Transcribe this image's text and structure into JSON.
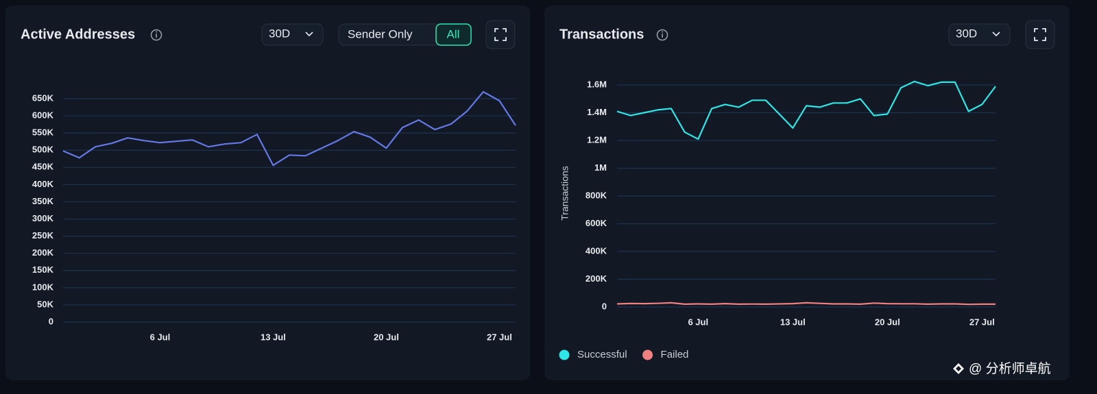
{
  "chart_data": [
    {
      "type": "line",
      "title": "Active Addresses",
      "controls": {
        "range": "30D",
        "toggle": [
          "Sender Only",
          "All"
        ]
      },
      "categories": [
        null,
        null,
        null,
        null,
        null,
        null,
        "6 Jul",
        null,
        null,
        null,
        null,
        null,
        null,
        "13 Jul",
        null,
        null,
        null,
        null,
        null,
        null,
        "20 Jul",
        null,
        null,
        null,
        null,
        null,
        null,
        "27 Jul",
        null
      ],
      "values": [
        498000,
        478000,
        510000,
        520000,
        536000,
        528000,
        522000,
        526000,
        530000,
        510000,
        518000,
        522000,
        546000,
        456000,
        486000,
        484000,
        506000,
        528000,
        554000,
        538000,
        506000,
        566000,
        588000,
        560000,
        576000,
        614000,
        670000,
        644000,
        572000
      ],
      "color": "#6478e6",
      "ylim": [
        0,
        650000
      ],
      "yticks": [
        0,
        {
          "value": 50000,
          "label": "50K"
        },
        {
          "value": 100000,
          "label": "100K"
        },
        {
          "value": 150000,
          "label": "150K"
        },
        {
          "value": 200000,
          "label": "200K"
        },
        {
          "value": 250000,
          "label": "250K"
        },
        {
          "value": 300000,
          "label": "300K"
        },
        {
          "value": 350000,
          "label": "350K"
        },
        {
          "value": 400000,
          "label": "400K"
        },
        {
          "value": 450000,
          "label": "450K"
        },
        {
          "value": 500000,
          "label": "500K"
        },
        {
          "value": 550000,
          "label": "550K"
        },
        {
          "value": 600000,
          "label": "600K"
        },
        {
          "value": 650000,
          "label": "650K"
        }
      ],
      "grid": true
    },
    {
      "type": "line",
      "title": "Transactions",
      "controls": {
        "range": "30D"
      },
      "y_label": "Transactions",
      "categories": [
        null,
        null,
        null,
        null,
        null,
        null,
        "6 Jul",
        null,
        null,
        null,
        null,
        null,
        null,
        "13 Jul",
        null,
        null,
        null,
        null,
        null,
        null,
        "20 Jul",
        null,
        null,
        null,
        null,
        null,
        null,
        "27 Jul",
        null
      ],
      "series": [
        {
          "name": "Successful",
          "color": "#2ee6e6",
          "values": [
            1410000,
            1380000,
            1400000,
            1420000,
            1430000,
            1260000,
            1210000,
            1430000,
            1460000,
            1440000,
            1490000,
            1490000,
            1390000,
            1290000,
            1450000,
            1440000,
            1470000,
            1470000,
            1500000,
            1380000,
            1390000,
            1580000,
            1625000,
            1595000,
            1620000,
            1620000,
            1410000,
            1460000,
            1590000
          ]
        },
        {
          "name": "Failed",
          "color": "#f08080",
          "values": [
            22000,
            25000,
            24000,
            26000,
            30000,
            20000,
            22000,
            20000,
            24000,
            20000,
            21000,
            20000,
            22000,
            24000,
            30000,
            26000,
            22000,
            22000,
            20000,
            28000,
            24000,
            23000,
            23000,
            20000,
            22000,
            22000,
            19000,
            20000,
            20000
          ]
        }
      ],
      "ylim": [
        0,
        1600000
      ],
      "yticks": [
        0,
        {
          "value": 200000,
          "label": "200K"
        },
        {
          "value": 400000,
          "label": "400K"
        },
        {
          "value": 600000,
          "label": "600K"
        },
        {
          "value": 800000,
          "label": "800K"
        },
        {
          "value": 1000000,
          "label": "1M"
        },
        {
          "value": 1200000,
          "label": "1.2M"
        },
        {
          "value": 1400000,
          "label": "1.4M"
        },
        {
          "value": 1600000,
          "label": "1.6M"
        }
      ],
      "grid": true,
      "legend": "bottom-left"
    }
  ],
  "watermark": "@ 分析师卓航"
}
